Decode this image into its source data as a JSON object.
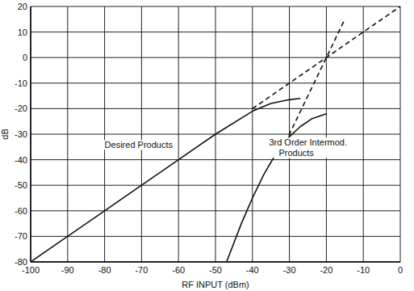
{
  "chart_data": {
    "type": "line",
    "x_label": "RF INPUT (dBm)",
    "y_label": "dB",
    "xlim": [
      -100,
      0
    ],
    "ylim": [
      -80,
      20
    ],
    "xticks": [
      -100,
      -90,
      -80,
      -70,
      -60,
      -50,
      -40,
      -30,
      -20,
      -10,
      0
    ],
    "yticks": [
      -80,
      -70,
      -60,
      -50,
      -40,
      -30,
      -20,
      -10,
      0,
      10,
      20
    ],
    "grid": true,
    "series": [
      {
        "name": "Desired Products",
        "color": "#111111",
        "line_style": "solid",
        "x": [
          -100,
          -90,
          -80,
          -70,
          -60,
          -50,
          -40,
          -35,
          -30,
          -27
        ],
        "values": [
          -80,
          -70,
          -60,
          -50,
          -40,
          -30,
          -21,
          -18,
          -16.5,
          -16
        ]
      },
      {
        "color": "#111111",
        "line_style": "dashed",
        "x": [
          -40,
          0
        ],
        "values": [
          -20,
          20
        ]
      },
      {
        "name": "3rd Order Intermod. Products",
        "color": "#111111",
        "line_style": "solid",
        "x": [
          -47,
          -43,
          -40,
          -37,
          -35,
          -32,
          -30,
          -27,
          -24,
          -20
        ],
        "values": [
          -80,
          -65,
          -55,
          -46,
          -41,
          -34,
          -31,
          -27,
          -24,
          -22
        ]
      },
      {
        "color": "#111111",
        "line_style": "dashed",
        "x": [
          -33,
          -15
        ],
        "values": [
          -39,
          15
        ]
      }
    ]
  }
}
